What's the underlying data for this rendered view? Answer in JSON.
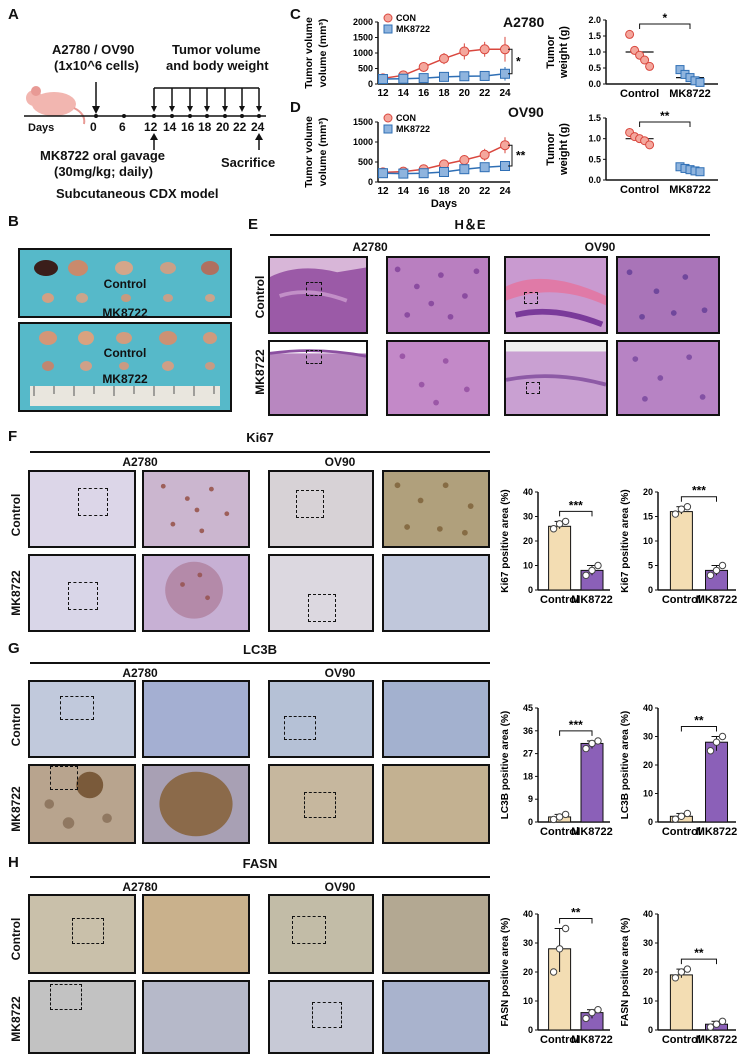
{
  "panelA": {
    "letter": "A",
    "cell_lines": "A2780 / OV90",
    "cells": "(1x10^6 cells)",
    "measure": "Tumor volume",
    "measure2": "and body weight",
    "days_label": "Days",
    "days": [
      "0",
      "6",
      "12",
      "14",
      "16",
      "18",
      "20",
      "22",
      "24"
    ],
    "treatment1": "MK8722 oral gavage",
    "treatment2": "(30mg/kg; daily)",
    "sacrifice": "Sacrifice",
    "model": "Subcutaneous CDX model"
  },
  "panelC": {
    "letter": "C",
    "line": "A2780"
  },
  "panelD": {
    "letter": "D",
    "line": "OV90"
  },
  "panelB": {
    "letter": "B",
    "control": "Control",
    "treated": "MK8722",
    "control2": "Control",
    "treated2": "MK8722"
  },
  "panelE": {
    "letter": "E",
    "title": "H＆E",
    "col1": "A2780",
    "col2": "OV90",
    "row1": "Control",
    "row2": "MK8722"
  },
  "panelF": {
    "letter": "F",
    "title": "Ki67",
    "col1": "A2780",
    "col2": "OV90",
    "row1": "Control",
    "row2": "MK8722"
  },
  "panelG": {
    "letter": "G",
    "title": "LC3B",
    "col1": "A2780",
    "col2": "OV90",
    "row1": "Control",
    "row2": "MK8722"
  },
  "panelH": {
    "letter": "H",
    "title": "FASN",
    "col1": "A2780",
    "col2": "OV90",
    "row1": "Control",
    "row2": "MK8722"
  },
  "colors": {
    "con_line": "#d9473e",
    "con_fill": "#f4a79d",
    "mk_fill": "#8fb4de",
    "mk_line": "#2f6fb5",
    "bar_con": "#f3ddb3",
    "bar_mk": "#8b60b8"
  },
  "chart_data": [
    {
      "id": "C-volume",
      "type": "line",
      "title": "A2780",
      "xlabel": "",
      "ylabel": "Tumor volume (mm³)",
      "x": [
        12,
        14,
        16,
        18,
        20,
        22,
        24
      ],
      "ylim": [
        0,
        2000
      ],
      "yticks": [
        "0",
        "500",
        "1000",
        "1500",
        "2000"
      ],
      "series": [
        {
          "name": "CON",
          "values": [
            180,
            280,
            550,
            820,
            1050,
            1120,
            1120
          ],
          "err": [
            60,
            80,
            120,
            180,
            260,
            240,
            400
          ]
        },
        {
          "name": "MK8722",
          "values": [
            160,
            170,
            190,
            230,
            250,
            260,
            330
          ],
          "err": [
            40,
            40,
            60,
            80,
            100,
            120,
            220
          ]
        }
      ],
      "sig": "*"
    },
    {
      "id": "D-volume",
      "type": "line",
      "title": "OV90",
      "xlabel": "Days",
      "ylabel": "Tumor volume (mm³)",
      "x": [
        12,
        14,
        16,
        18,
        20,
        22,
        24
      ],
      "ylim": [
        0,
        1500
      ],
      "yticks": [
        "0",
        "500",
        "1000",
        "1500"
      ],
      "series": [
        {
          "name": "CON",
          "values": [
            240,
            260,
            320,
            440,
            550,
            680,
            920
          ],
          "err": [
            60,
            70,
            80,
            90,
            120,
            150,
            200
          ]
        },
        {
          "name": "MK8722",
          "values": [
            220,
            210,
            220,
            250,
            320,
            370,
            400
          ],
          "err": [
            60,
            60,
            70,
            80,
            100,
            110,
            120
          ]
        }
      ],
      "sig": "**"
    },
    {
      "id": "C-weight",
      "type": "scatter",
      "ylabel": "Tumor weight (g)",
      "categories": [
        "Control",
        "MK8722"
      ],
      "ylim": [
        0,
        2.0
      ],
      "yticks": [
        "0.0",
        "0.5",
        "1.0",
        "1.5",
        "2.0"
      ],
      "points": [
        [
          1.55,
          1.05,
          0.9,
          0.75,
          0.55
        ],
        [
          0.45,
          0.3,
          0.2,
          0.1,
          0.05
        ]
      ],
      "means": [
        1.0,
        0.2
      ],
      "sig": "*"
    },
    {
      "id": "D-weight",
      "type": "scatter",
      "ylabel": "Tumor weight (g)",
      "categories": [
        "Control",
        "MK8722"
      ],
      "ylim": [
        0,
        1.5
      ],
      "yticks": [
        "0.0",
        "0.5",
        "1.0",
        "1.5"
      ],
      "points": [
        [
          1.15,
          1.05,
          1.0,
          0.95,
          0.85
        ],
        [
          0.32,
          0.28,
          0.25,
          0.22,
          0.2
        ]
      ],
      "means": [
        1.0,
        0.25
      ],
      "sig": "**"
    },
    {
      "id": "F-A2780",
      "type": "bar",
      "ylabel": "Ki67 positive area (%)",
      "categories": [
        "Control",
        "MK8722"
      ],
      "values": [
        26,
        8
      ],
      "ylim": [
        0,
        40
      ],
      "yticks": [
        "0",
        "10",
        "20",
        "30",
        "40"
      ],
      "points": [
        [
          25,
          27,
          28
        ],
        [
          6,
          8,
          10
        ]
      ],
      "sig": "***"
    },
    {
      "id": "F-OV90",
      "type": "bar",
      "ylabel": "Ki67 positive area (%)",
      "categories": [
        "Control",
        "MK8722"
      ],
      "values": [
        16,
        4
      ],
      "ylim": [
        0,
        20
      ],
      "yticks": [
        "0",
        "5",
        "10",
        "15",
        "20"
      ],
      "points": [
        [
          15.5,
          16.5,
          17
        ],
        [
          3,
          4,
          5
        ]
      ],
      "sig": "***"
    },
    {
      "id": "G-A2780",
      "type": "bar",
      "ylabel": "LC3B positive area (%)",
      "categories": [
        "Control",
        "MK8722"
      ],
      "values": [
        2,
        31
      ],
      "ylim": [
        0,
        45
      ],
      "yticks": [
        "0",
        "9",
        "18",
        "27",
        "36",
        "45"
      ],
      "points": [
        [
          1,
          2,
          3
        ],
        [
          29,
          31,
          32
        ]
      ],
      "sig": "***"
    },
    {
      "id": "G-OV90",
      "type": "bar",
      "ylabel": "LC3B positive area (%)",
      "categories": [
        "Control",
        "MK8722"
      ],
      "values": [
        2,
        28
      ],
      "ylim": [
        0,
        40
      ],
      "yticks": [
        "0",
        "10",
        "20",
        "30",
        "40"
      ],
      "points": [
        [
          1,
          2,
          3
        ],
        [
          25,
          28,
          30
        ]
      ],
      "sig": "**"
    },
    {
      "id": "H-A2780",
      "type": "bar",
      "ylabel": "FASN positive area (%)",
      "categories": [
        "Control",
        "MK8722"
      ],
      "values": [
        28,
        6
      ],
      "ylim": [
        0,
        40
      ],
      "yticks": [
        "0",
        "10",
        "20",
        "30",
        "40"
      ],
      "points": [
        [
          20,
          28,
          35
        ],
        [
          4,
          6,
          7
        ]
      ],
      "sig": "**"
    },
    {
      "id": "H-OV90",
      "type": "bar",
      "ylabel": "FASN positive area (%)",
      "categories": [
        "Control",
        "MK8722"
      ],
      "values": [
        19,
        2
      ],
      "ylim": [
        0,
        40
      ],
      "yticks": [
        "0",
        "10",
        "20",
        "30",
        "40"
      ],
      "points": [
        [
          18,
          20,
          21
        ],
        [
          1,
          2,
          3
        ]
      ],
      "sig": "**"
    }
  ]
}
